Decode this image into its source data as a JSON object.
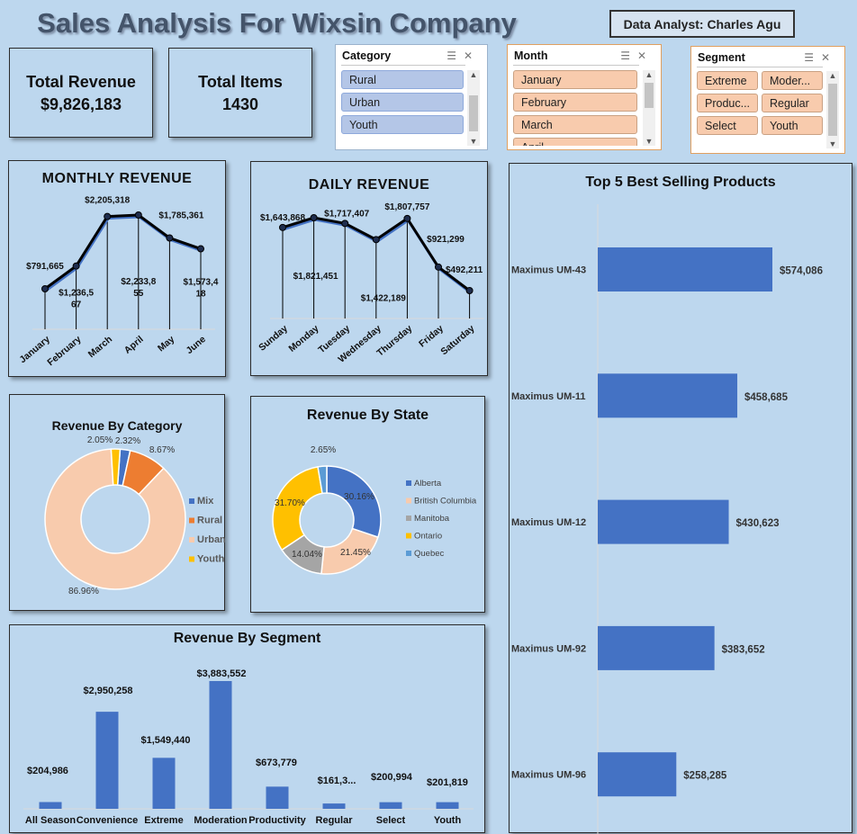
{
  "header": {
    "title": "Sales Analysis For Wixsin Company",
    "analyst": "Data Analyst: Charles Agu"
  },
  "kpis": {
    "revenue_label": "Total Revenue",
    "revenue_value": "$9,826,183",
    "items_label": "Total Items",
    "items_value": "1430"
  },
  "slicers": {
    "category": {
      "title": "Category",
      "items": [
        "Rural",
        "Urban",
        "Youth"
      ]
    },
    "month": {
      "title": "Month",
      "items": [
        "January",
        "February",
        "March",
        "April"
      ]
    },
    "segment": {
      "title": "Segment",
      "items": [
        "Extreme",
        "Moder...",
        "Produc...",
        "Regular",
        "Select",
        "Youth"
      ]
    }
  },
  "colors": {
    "bar": "#4472c4",
    "line": "#000000",
    "mix": "#4472c4",
    "rural": "#ed7d31",
    "urban": "#f8cbad",
    "youth": "#ffc000",
    "alberta": "#4472c4",
    "bc": "#f8cbad",
    "manitoba": "#a5a5a5",
    "ontario": "#ffc000",
    "quebec": "#5b9bd5"
  },
  "chart_data": [
    {
      "id": "monthly",
      "type": "line",
      "title": "MONTHLY REVENUE",
      "categories": [
        "January",
        "February",
        "March",
        "April",
        "May",
        "June"
      ],
      "values": [
        791665,
        1236567,
        2205318,
        2233855,
        1785361,
        1573418
      ],
      "labels": [
        "$791,665",
        "$1,236,5 67",
        "$2,205,318",
        "$2,233,8 55",
        "$1,785,361",
        "$1,573,4 18"
      ]
    },
    {
      "id": "daily",
      "type": "line",
      "title": "DAILY REVENUE",
      "categories": [
        "Sunday",
        "Monday",
        "Tuesday",
        "Wednesday",
        "Thursday",
        "Friday",
        "Saturday"
      ],
      "values": [
        1643868,
        1821451,
        1717407,
        1422189,
        1807757,
        921299,
        492211
      ],
      "labels": [
        "$1,643,868",
        "$1,821,451",
        "$1,717,407",
        "$1,422,189",
        "$1,807,757",
        "$921,299",
        "$492,211"
      ]
    },
    {
      "id": "category",
      "type": "pie",
      "title": "Revenue By Category",
      "categories": [
        "Mix",
        "Rural",
        "Urban",
        "Youth"
      ],
      "values": [
        2.32,
        8.67,
        86.96,
        2.05
      ],
      "labels": [
        "2.32%",
        "8.67%",
        "86.96%",
        "2.05%"
      ]
    },
    {
      "id": "state",
      "type": "pie",
      "title": "Revenue By State",
      "categories": [
        "Alberta",
        "British Columbia",
        "Manitoba",
        "Ontario",
        "Quebec"
      ],
      "values": [
        30.16,
        21.45,
        14.04,
        31.7,
        2.65
      ],
      "labels": [
        "30.16%",
        "21.45%",
        "14.04%",
        "31.70%",
        "2.65%"
      ]
    },
    {
      "id": "segment",
      "type": "bar",
      "title": "Revenue By Segment",
      "categories": [
        "All Season",
        "Convenience",
        "Extreme",
        "Moderation",
        "Productivity",
        "Regular",
        "Select",
        "Youth"
      ],
      "values": [
        204986,
        2950258,
        1549440,
        3883552,
        673779,
        161300,
        200994,
        201819
      ],
      "labels": [
        "$204,986",
        "$2,950,258",
        "$1,549,440",
        "$3,883,552",
        "$673,779",
        "$161,3...",
        "$200,994",
        "$201,819"
      ]
    },
    {
      "id": "top5",
      "type": "bar",
      "title": "Top 5 Best Selling Products",
      "categories": [
        "Maximus UM-43",
        "Maximus UM-11",
        "Maximus UM-12",
        "Maximus UM-92",
        "Maximus UM-96"
      ],
      "values": [
        574086,
        458685,
        430623,
        383652,
        258285
      ],
      "labels": [
        "$574,086",
        "$458,685",
        "$430,623",
        "$383,652",
        "$258,285"
      ]
    }
  ]
}
